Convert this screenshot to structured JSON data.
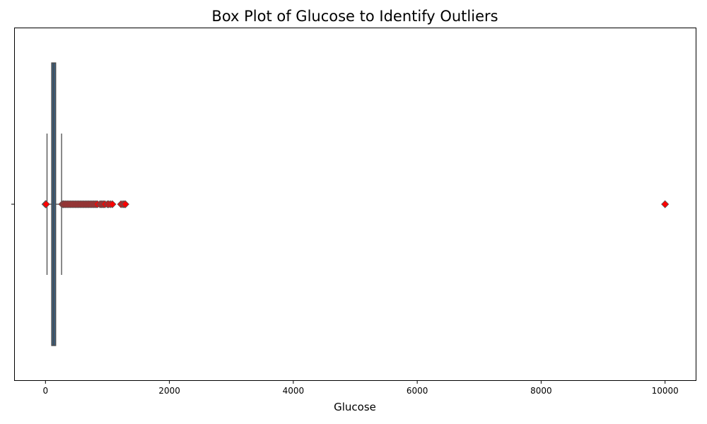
{
  "chart_data": {
    "type": "box",
    "title": "Box Plot of Glucose to Identify Outliers",
    "xlabel": "Glucose",
    "ylabel": "",
    "xlim": [
      -500,
      10500
    ],
    "xticks": [
      0,
      2000,
      4000,
      6000,
      8000,
      10000
    ],
    "xtick_labels": [
      "0",
      "2000",
      "4000",
      "6000",
      "8000",
      "10000"
    ],
    "orientation": "horizontal",
    "grid": false,
    "legend": "none",
    "box": {
      "q1": 100,
      "median": 130,
      "q3": 165,
      "whisker_low": 25,
      "whisker_high": 260
    },
    "outliers": [
      0,
      5,
      10,
      270,
      290,
      300,
      320,
      340,
      360,
      380,
      400,
      420,
      440,
      460,
      480,
      500,
      520,
      540,
      560,
      580,
      600,
      620,
      640,
      660,
      680,
      700,
      720,
      740,
      760,
      780,
      800,
      820,
      840,
      880,
      900,
      920,
      940,
      960,
      1000,
      1020,
      1050,
      1080,
      1220,
      1250,
      1270,
      1290,
      10000
    ],
    "colors": {
      "box_fill": "#3b5f80",
      "box_edge": "#4a4a4a",
      "whisker": "#4a4a4a",
      "outlier_fill": "#ff0000",
      "outlier_edge": "#555555"
    }
  }
}
